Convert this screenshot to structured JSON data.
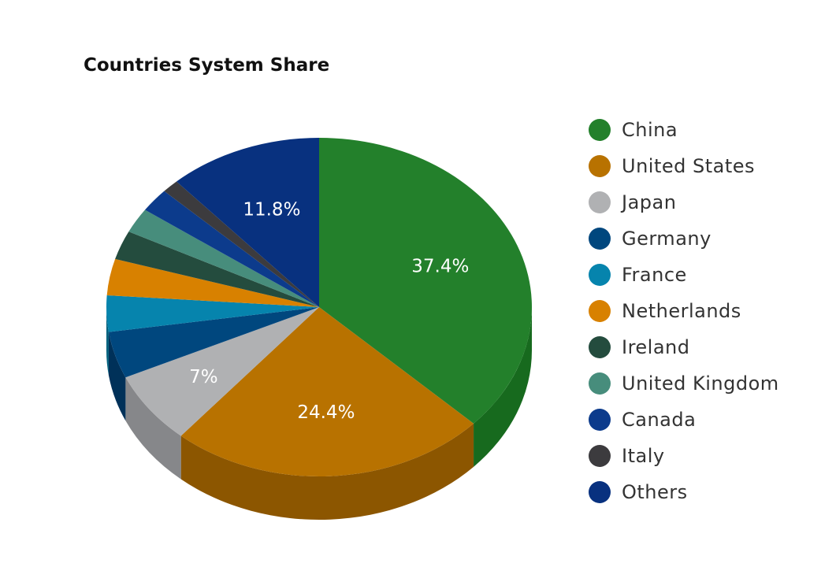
{
  "chart_data": {
    "type": "pie",
    "title": "Countries System Share",
    "slices": [
      {
        "name": "China",
        "value": 37.4,
        "label": "37.4%",
        "color": "#23802b",
        "side": "#176a1e"
      },
      {
        "name": "United States",
        "value": 24.4,
        "label": "24.4%",
        "color": "#b87200",
        "side": "#8c5600"
      },
      {
        "name": "Japan",
        "value": 7.0,
        "label": "7%",
        "color": "#b0b1b3",
        "side": "#86878a"
      },
      {
        "name": "Germany",
        "value": 4.5,
        "label": "",
        "color": "#00477e",
        "side": "#003159"
      },
      {
        "name": "France",
        "value": 3.5,
        "label": "",
        "color": "#0684ad",
        "side": "#04627f"
      },
      {
        "name": "Netherlands",
        "value": 3.5,
        "label": "",
        "color": "#d88100",
        "side": "#a86400"
      },
      {
        "name": "Ireland",
        "value": 2.8,
        "label": "",
        "color": "#244c3e",
        "side": "#17342a"
      },
      {
        "name": "United Kingdom",
        "value": 2.4,
        "label": "",
        "color": "#478d7c",
        "side": "#336a5d"
      },
      {
        "name": "Canada",
        "value": 2.3,
        "label": "",
        "color": "#0c3b8c",
        "side": "#082a66"
      },
      {
        "name": "Italy",
        "value": 1.3,
        "label": "",
        "color": "#3c3b3e",
        "side": "#29282b"
      },
      {
        "name": "Others",
        "value": 11.8,
        "label": "11.8%",
        "color": "#08317f",
        "side": "#05225c"
      }
    ],
    "legend_position": "right"
  }
}
